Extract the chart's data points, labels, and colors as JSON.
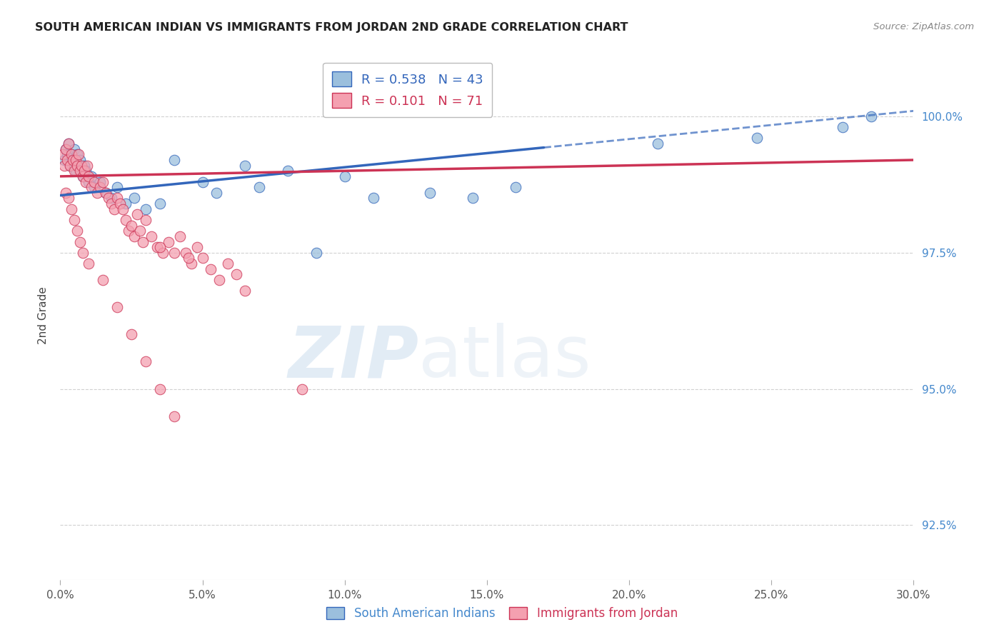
{
  "title": "SOUTH AMERICAN INDIAN VS IMMIGRANTS FROM JORDAN 2ND GRADE CORRELATION CHART",
  "source": "Source: ZipAtlas.com",
  "ylabel": "2nd Grade",
  "xlim": [
    0.0,
    30.0
  ],
  "ylim": [
    91.5,
    101.2
  ],
  "xticks": [
    0.0,
    5.0,
    10.0,
    15.0,
    20.0,
    25.0,
    30.0
  ],
  "yticks": [
    92.5,
    95.0,
    97.5,
    100.0
  ],
  "ytick_labels": [
    "92.5%",
    "95.0%",
    "97.5%",
    "100.0%"
  ],
  "xtick_labels": [
    "0.0%",
    "5.0%",
    "10.0%",
    "15.0%",
    "20.0%",
    "25.0%",
    "30.0%"
  ],
  "blue_label": "South American Indians",
  "pink_label": "Immigrants from Jordan",
  "blue_R": 0.538,
  "blue_N": 43,
  "pink_R": 0.101,
  "pink_N": 71,
  "blue_color": "#9BBFDD",
  "pink_color": "#F4A0B0",
  "blue_line_color": "#3366BB",
  "pink_line_color": "#CC3355",
  "watermark_zip": "ZIP",
  "watermark_atlas": "atlas",
  "blue_scatter_x": [
    0.15,
    0.2,
    0.25,
    0.3,
    0.35,
    0.4,
    0.45,
    0.5,
    0.55,
    0.6,
    0.65,
    0.7,
    0.75,
    0.8,
    0.85,
    0.9,
    1.0,
    1.1,
    1.2,
    1.4,
    1.6,
    1.8,
    2.0,
    2.3,
    2.6,
    3.0,
    3.5,
    4.0,
    5.0,
    5.5,
    6.5,
    7.0,
    8.0,
    9.0,
    10.0,
    11.0,
    13.0,
    14.5,
    16.0,
    21.0,
    24.5,
    27.5,
    28.5
  ],
  "blue_scatter_y": [
    99.2,
    99.4,
    99.3,
    99.5,
    99.1,
    99.3,
    99.2,
    99.4,
    99.0,
    99.3,
    99.1,
    99.2,
    99.0,
    98.9,
    99.1,
    99.0,
    98.8,
    98.9,
    98.7,
    98.8,
    98.6,
    98.5,
    98.7,
    98.4,
    98.5,
    98.3,
    98.4,
    99.2,
    98.8,
    98.6,
    99.1,
    98.7,
    99.0,
    97.5,
    98.9,
    98.5,
    98.6,
    98.5,
    98.7,
    99.5,
    99.6,
    99.8,
    100.0
  ],
  "pink_scatter_x": [
    0.1,
    0.15,
    0.2,
    0.25,
    0.3,
    0.35,
    0.4,
    0.45,
    0.5,
    0.55,
    0.6,
    0.65,
    0.7,
    0.75,
    0.8,
    0.85,
    0.9,
    0.95,
    1.0,
    1.1,
    1.2,
    1.3,
    1.4,
    1.5,
    1.6,
    1.7,
    1.8,
    1.9,
    2.0,
    2.1,
    2.2,
    2.3,
    2.4,
    2.5,
    2.6,
    2.7,
    2.8,
    2.9,
    3.0,
    3.2,
    3.4,
    3.6,
    3.8,
    4.0,
    4.2,
    4.4,
    4.6,
    4.8,
    5.0,
    5.3,
    5.6,
    5.9,
    6.2,
    6.5,
    3.5,
    4.5,
    0.2,
    0.3,
    0.4,
    0.5,
    0.6,
    0.7,
    0.8,
    1.0,
    1.5,
    2.0,
    2.5,
    3.0,
    3.5,
    4.0,
    8.5
  ],
  "pink_scatter_y": [
    99.3,
    99.1,
    99.4,
    99.2,
    99.5,
    99.1,
    99.3,
    99.2,
    99.0,
    99.2,
    99.1,
    99.3,
    99.0,
    99.1,
    98.9,
    99.0,
    98.8,
    99.1,
    98.9,
    98.7,
    98.8,
    98.6,
    98.7,
    98.8,
    98.6,
    98.5,
    98.4,
    98.3,
    98.5,
    98.4,
    98.3,
    98.1,
    97.9,
    98.0,
    97.8,
    98.2,
    97.9,
    97.7,
    98.1,
    97.8,
    97.6,
    97.5,
    97.7,
    97.5,
    97.8,
    97.5,
    97.3,
    97.6,
    97.4,
    97.2,
    97.0,
    97.3,
    97.1,
    96.8,
    97.6,
    97.4,
    98.6,
    98.5,
    98.3,
    98.1,
    97.9,
    97.7,
    97.5,
    97.3,
    97.0,
    96.5,
    96.0,
    95.5,
    95.0,
    94.5,
    95.0
  ],
  "blue_trend_x0": 0.0,
  "blue_trend_y0": 98.55,
  "blue_trend_x1": 30.0,
  "blue_trend_y1": 100.1,
  "pink_trend_x0": 0.0,
  "pink_trend_y0": 98.9,
  "pink_trend_x1": 30.0,
  "pink_trend_y1": 99.2,
  "blue_solid_end_x": 17.0,
  "blue_dashed_start_x": 17.0,
  "blue_dashed_end_x": 30.0
}
